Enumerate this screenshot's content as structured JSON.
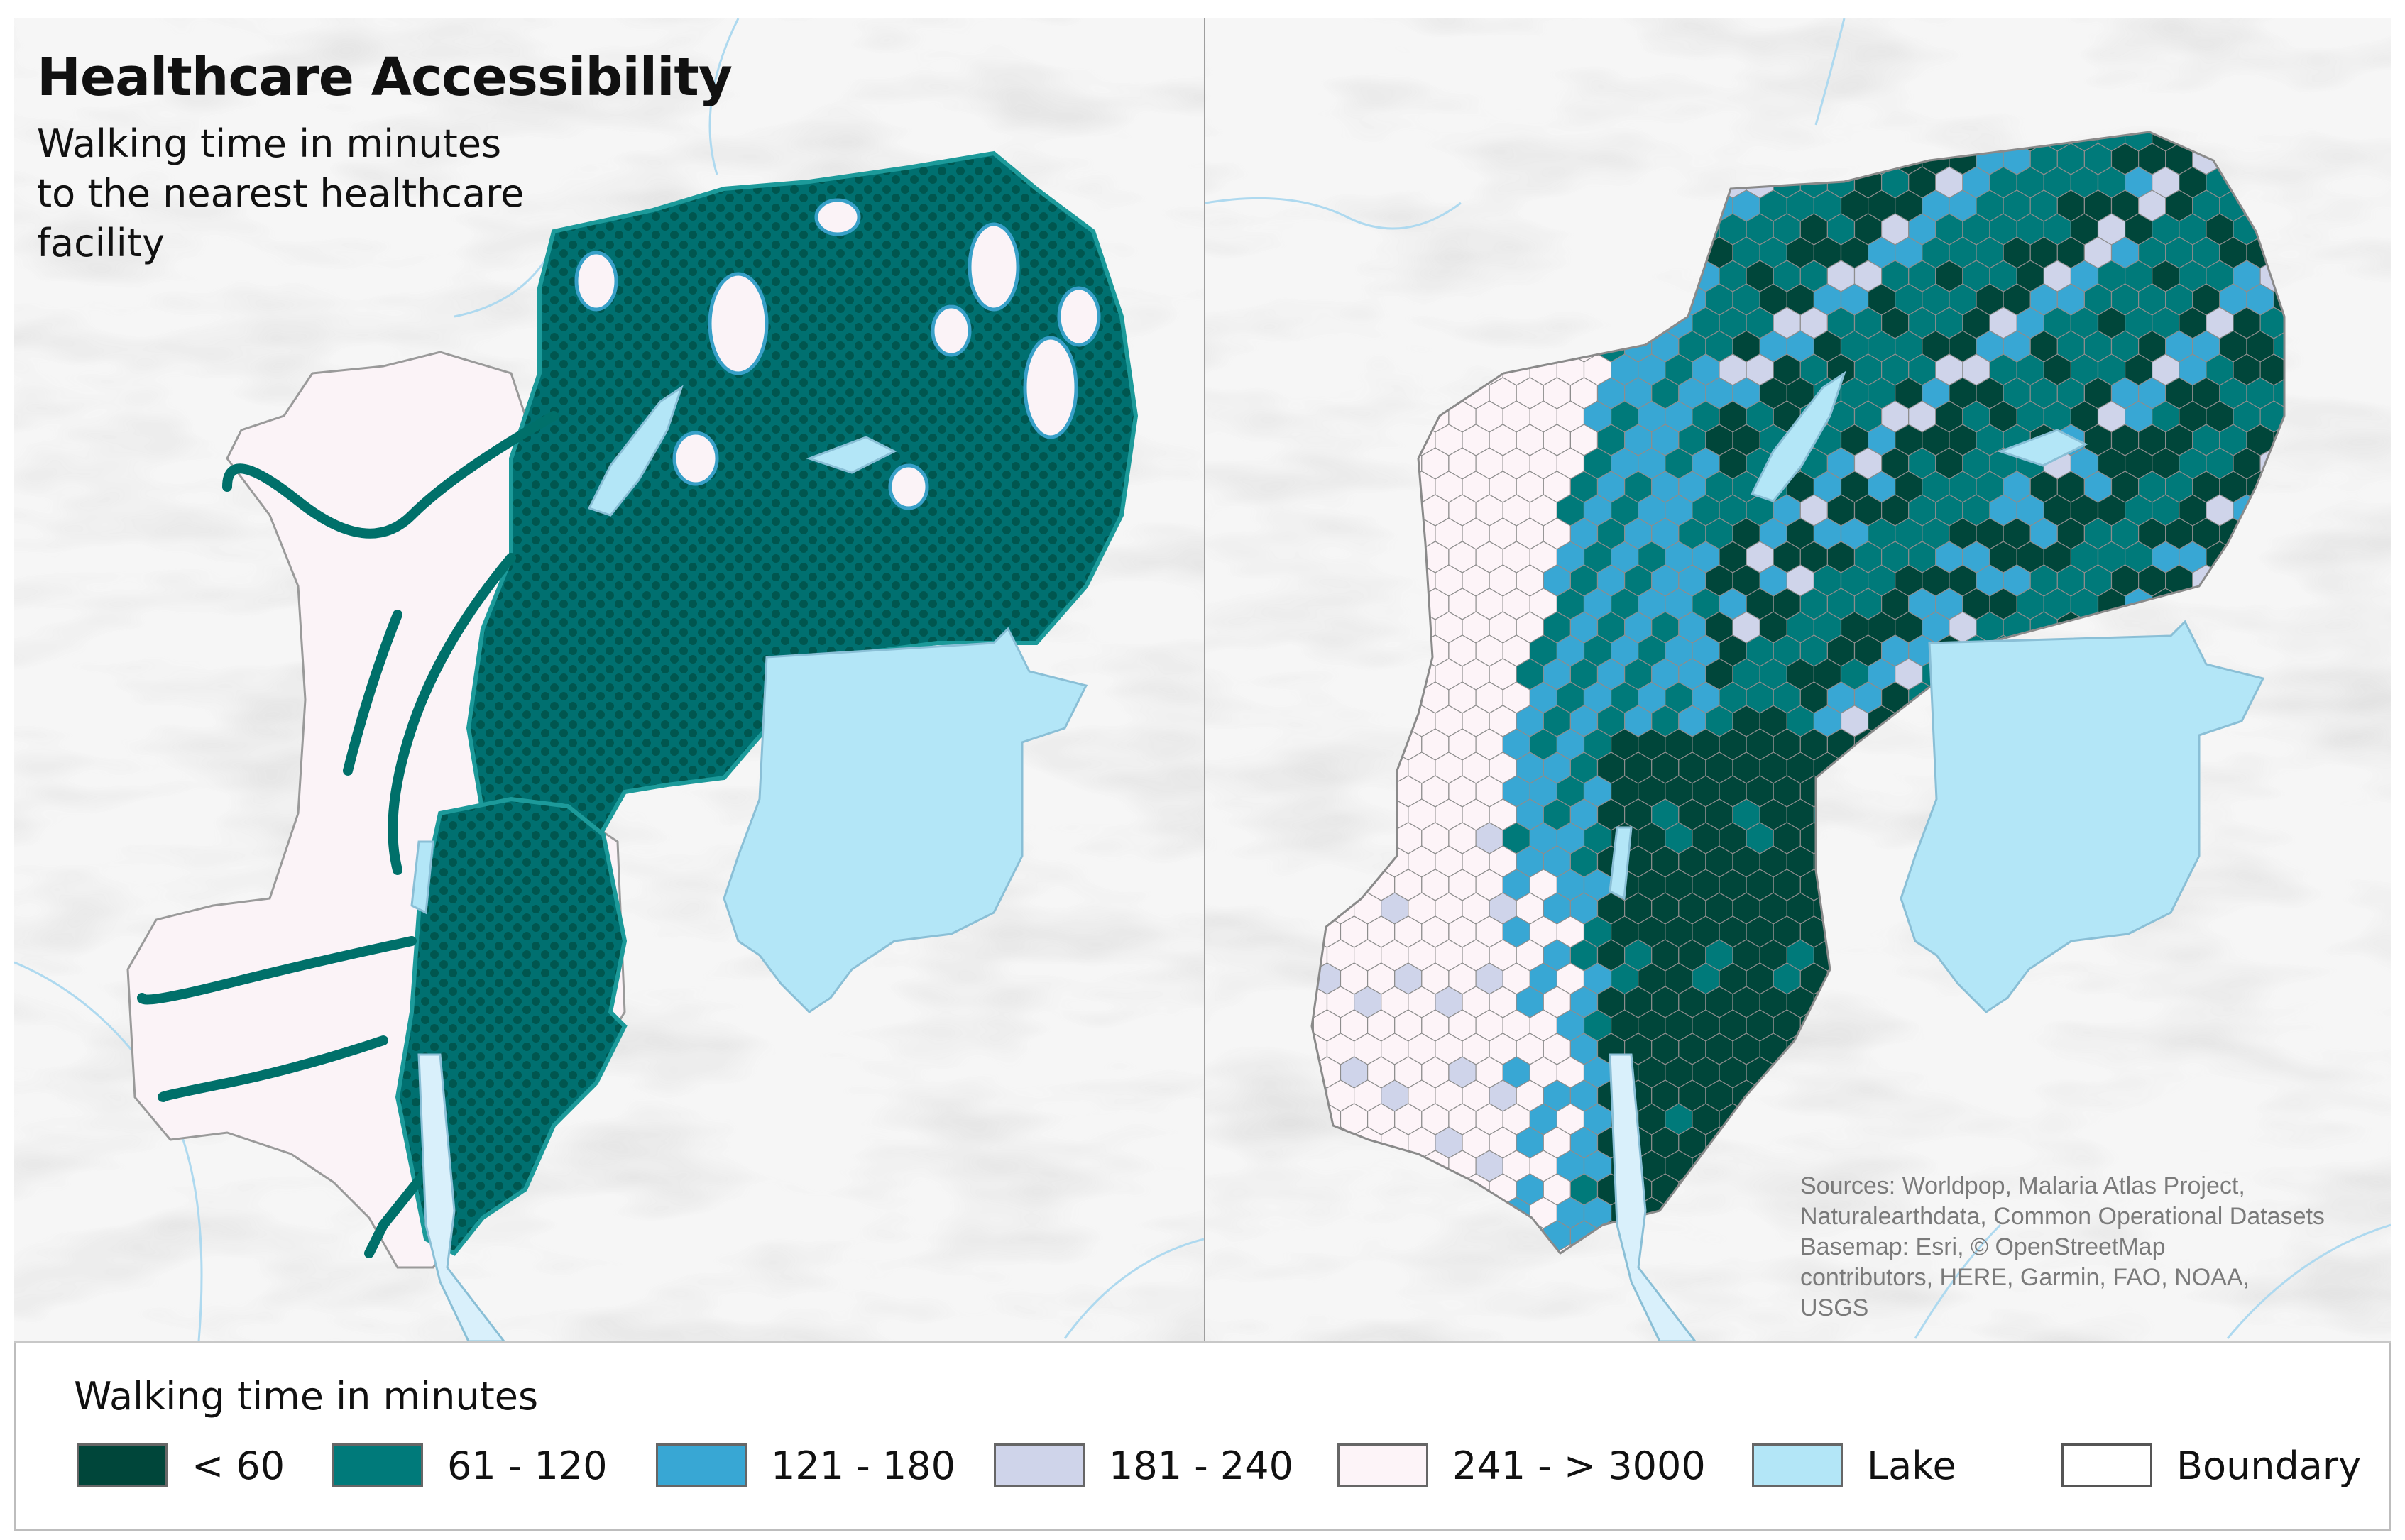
{
  "title": "Healthcare Accessibility",
  "subtitle": [
    "Walking time in minutes",
    "to the nearest healthcare",
    "facility"
  ],
  "sources": [
    "Sources: Worldpop, Malaria Atlas Project,",
    "Naturalearthdata, Common Operational Datasets",
    "Basemap: Esri, © OpenStreetMap",
    "contributors, HERE, Garmin, FAO, NOAA,",
    "USGS"
  ],
  "legend": {
    "title": "Walking time in minutes",
    "items": [
      {
        "label": "< 60",
        "color": "#00463a"
      },
      {
        "label": "61 - 120",
        "color": "#007a7a"
      },
      {
        "label": "121 - 180",
        "color": "#38a7d4"
      },
      {
        "label": "181 - 240",
        "color": "#cfd4ea"
      },
      {
        "label": "241 - > 3000",
        "color": "#fdf4f8"
      },
      {
        "label": "Lake",
        "color": "#b3e6f7"
      },
      {
        "label": "Boundary",
        "color": "#ffffff"
      }
    ]
  }
}
